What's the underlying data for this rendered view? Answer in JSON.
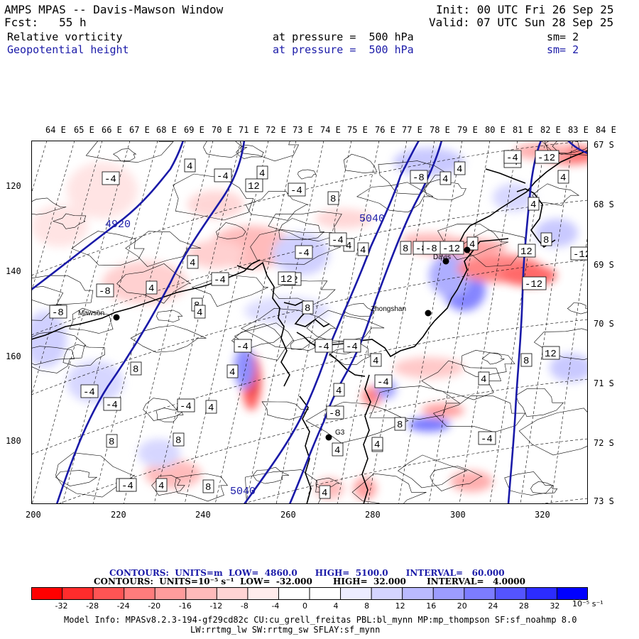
{
  "header": {
    "title": "AMPS MPAS -- Davis-Mawson Window",
    "init": "Init: 00 UTC Fri 26 Sep 25",
    "fcst": "Fcst:   55 h",
    "valid": "Valid: 07 UTC Sun 28 Sep 25",
    "field1": {
      "name": "Relative vorticity",
      "level": "at pressure =  500 hPa",
      "sm": "sm= 2"
    },
    "field2": {
      "name": "Geopotential height",
      "level": "at pressure =  500 hPa",
      "sm": "sm= 2"
    }
  },
  "map": {
    "top_lon_labels": [
      "64 E",
      "65 E",
      "66 E",
      "67 E",
      "68 E",
      "69 E",
      "70 E",
      "71 E",
      "72 E",
      "73 E",
      "74 E",
      "75 E",
      "76 E",
      "77 E",
      "78 E",
      "79 E",
      "80 E",
      "81 E",
      "82 E",
      "83 E",
      "84 E"
    ],
    "right_lat_labels": [
      "67 S",
      "68 S",
      "69 S",
      "70 S",
      "71 S",
      "72 S",
      "73 S"
    ],
    "left_grid_labels": [
      "120",
      "140",
      "160",
      "180"
    ],
    "bottom_grid_labels": [
      "200",
      "220",
      "240",
      "260",
      "280",
      "300",
      "320"
    ],
    "stations": [
      "Mawson",
      "Davis",
      "Zhongshan",
      "G3"
    ],
    "height_contour_labels": [
      "4920",
      "5040",
      "5040"
    ],
    "vort_box_labels": [
      "-4",
      "4",
      "-4",
      "4",
      "-4",
      "8",
      "-8",
      "4",
      "4",
      "-4",
      "-8",
      "8",
      "-4",
      "12",
      "-12",
      "4",
      "8",
      "12",
      "-4",
      "4",
      "-4",
      "8",
      "-8",
      "-8",
      "12",
      "4",
      "-4",
      "4",
      "8",
      "4",
      "-12",
      "-4",
      "4",
      "4",
      "8",
      "-8",
      "-4",
      "8",
      "4",
      "-4",
      "4",
      "-4",
      "4",
      "8",
      "4",
      "-4",
      "8",
      "-4",
      "4",
      "4",
      "-4",
      "-4",
      "4",
      "-8",
      "4",
      "4",
      "-4",
      "4",
      "12",
      "-12",
      "-4",
      "8",
      "-12",
      "12",
      "4",
      "8"
    ],
    "colors": {
      "height": "#1a1aa8",
      "coast": "#000000"
    }
  },
  "contours_line1": "CONTOURS:  UNITS=m  LOW=  4860.0      HIGH=  5100.0      INTERVAL=   60.000",
  "contours_line2": "CONTOURS:  UNITS=10⁻⁵ s⁻¹  LOW=  -32.000       HIGH=  32.000       INTERVAL=   4.0000",
  "colorbar": {
    "ticks": [
      "-32",
      "-28",
      "-24",
      "-20",
      "-16",
      "-12",
      "-8",
      "-4",
      "0",
      "4",
      "8",
      "12",
      "16",
      "20",
      "24",
      "28",
      "32"
    ],
    "unit": "10⁻⁵ s⁻¹",
    "colors": [
      "#ff0000",
      "#ff2c2c",
      "#ff5454",
      "#ff7c7c",
      "#ff9c9c",
      "#ffbaba",
      "#ffd4d4",
      "#ffecec",
      "#ffffff",
      "#ffffff",
      "#ececff",
      "#d4d4ff",
      "#babaff",
      "#9c9cff",
      "#7c7cff",
      "#5454ff",
      "#2c2cff",
      "#0000ff"
    ]
  },
  "model_info_1": "Model Info: MPASv8.2.3-194-gf29cd82c CU:cu_grell_freitas PBL:bl_mynn MP:mp_thompson SF:sf_noahmp 8.0",
  "model_info_2": "LW:rrtmg_lw SW:rrtmg_sw SFLAY:sf_mynn"
}
